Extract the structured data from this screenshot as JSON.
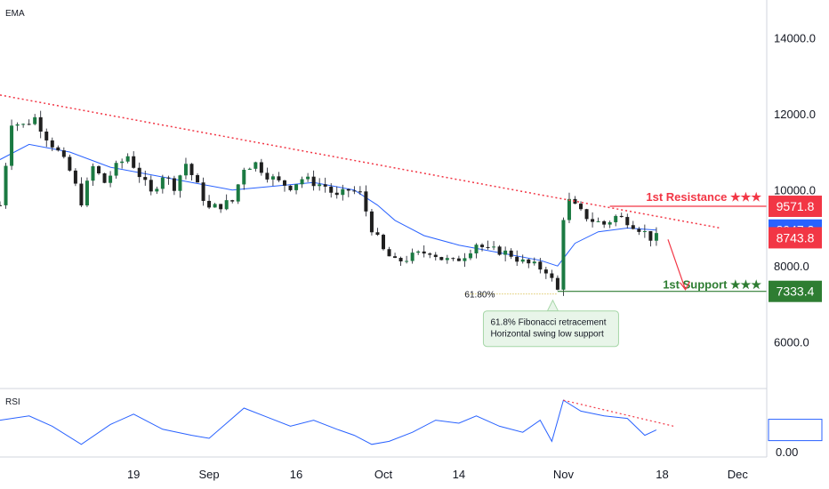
{
  "indicator_labels": {
    "ema": "EMA",
    "rsi": "RSI"
  },
  "chart_data": [
    {
      "type": "candlestick",
      "xlim": [
        "2019-07-27",
        "2019-12-06"
      ],
      "ylim": [
        4800,
        15000
      ],
      "x_ticks": [
        {
          "date": "2019-08-19",
          "label": "19"
        },
        {
          "date": "2019-09-01",
          "label": "Sep"
        },
        {
          "date": "2019-09-16",
          "label": "16"
        },
        {
          "date": "2019-10-01",
          "label": "Oct"
        },
        {
          "date": "2019-10-14",
          "label": "14"
        },
        {
          "date": "2019-11-01",
          "label": "Nov"
        },
        {
          "date": "2019-11-18",
          "label": "18"
        },
        {
          "date": "2019-12-01",
          "label": "Dec"
        }
      ],
      "y_ticks": [
        6000,
        8000,
        10000,
        12000,
        14000
      ],
      "y_tick_labels": [
        "6000.0",
        "8000.0",
        "10000.0",
        "12000.0",
        "14000.0"
      ],
      "grid": false,
      "price_close_path": [
        [
          "2019-07-27",
          9600
        ],
        [
          "2019-07-29",
          11800
        ],
        [
          "2019-07-31",
          11700
        ],
        [
          "2019-08-02",
          11900
        ],
        [
          "2019-08-04",
          11400
        ],
        [
          "2019-08-06",
          11000
        ],
        [
          "2019-08-08",
          10500
        ],
        [
          "2019-08-10",
          9700
        ],
        [
          "2019-08-12",
          10600
        ],
        [
          "2019-08-14",
          10200
        ],
        [
          "2019-08-16",
          10600
        ],
        [
          "2019-08-18",
          10900
        ],
        [
          "2019-08-20",
          10400
        ],
        [
          "2019-08-22",
          9900
        ],
        [
          "2019-08-24",
          10400
        ],
        [
          "2019-08-26",
          10100
        ],
        [
          "2019-08-28",
          10700
        ],
        [
          "2019-08-30",
          10100
        ],
        [
          "2019-09-01",
          9500
        ],
        [
          "2019-09-03",
          9600
        ],
        [
          "2019-09-05",
          9700
        ],
        [
          "2019-09-07",
          10600
        ],
        [
          "2019-09-09",
          10700
        ],
        [
          "2019-09-11",
          10400
        ],
        [
          "2019-09-13",
          10200
        ],
        [
          "2019-09-15",
          10100
        ],
        [
          "2019-09-17",
          10300
        ],
        [
          "2019-09-19",
          10200
        ],
        [
          "2019-09-21",
          10100
        ],
        [
          "2019-09-23",
          9800
        ],
        [
          "2019-09-25",
          10000
        ],
        [
          "2019-09-27",
          9900
        ],
        [
          "2019-09-29",
          9000
        ],
        [
          "2019-10-01",
          8400
        ],
        [
          "2019-10-03",
          8100
        ],
        [
          "2019-10-05",
          8200
        ],
        [
          "2019-10-07",
          8300
        ],
        [
          "2019-10-09",
          8400
        ],
        [
          "2019-10-11",
          8200
        ],
        [
          "2019-10-13",
          8100
        ],
        [
          "2019-10-15",
          8300
        ],
        [
          "2019-10-17",
          8600
        ],
        [
          "2019-10-19",
          8400
        ],
        [
          "2019-10-21",
          8400
        ],
        [
          "2019-10-23",
          8300
        ],
        [
          "2019-10-25",
          8100
        ],
        [
          "2019-10-27",
          8000
        ],
        [
          "2019-10-29",
          7900
        ],
        [
          "2019-10-31",
          7350
        ],
        [
          "2019-11-01",
          9300
        ],
        [
          "2019-11-02",
          9700
        ],
        [
          "2019-11-04",
          9400
        ],
        [
          "2019-11-06",
          9200
        ],
        [
          "2019-11-08",
          9100
        ],
        [
          "2019-11-10",
          9300
        ],
        [
          "2019-11-12",
          9200
        ],
        [
          "2019-11-14",
          9000
        ],
        [
          "2019-11-16",
          8750
        ],
        [
          "2019-11-17",
          8743.8
        ]
      ],
      "ema_path": [
        [
          "2019-07-27",
          10800
        ],
        [
          "2019-08-01",
          11200
        ],
        [
          "2019-08-08",
          11000
        ],
        [
          "2019-08-15",
          10600
        ],
        [
          "2019-08-22",
          10400
        ],
        [
          "2019-08-29",
          10200
        ],
        [
          "2019-09-05",
          10000
        ],
        [
          "2019-09-12",
          10100
        ],
        [
          "2019-09-19",
          10200
        ],
        [
          "2019-09-26",
          10000
        ],
        [
          "2019-09-30",
          9600
        ],
        [
          "2019-10-03",
          9200
        ],
        [
          "2019-10-08",
          8800
        ],
        [
          "2019-10-14",
          8550
        ],
        [
          "2019-10-21",
          8350
        ],
        [
          "2019-10-28",
          8150
        ],
        [
          "2019-10-31",
          8000
        ],
        [
          "2019-11-03",
          8600
        ],
        [
          "2019-11-07",
          8900
        ],
        [
          "2019-11-12",
          9000
        ],
        [
          "2019-11-17",
          8947.3
        ]
      ],
      "trendline": {
        "from": [
          "2019-07-27",
          12500
        ],
        "to": [
          "2019-11-28",
          9000
        ],
        "color": "#f23645"
      },
      "resistance": {
        "label": "1st Resistance ★★★",
        "value": "9571.8",
        "price": 9571.8,
        "from": "2019-11-09",
        "color": "#f23645"
      },
      "support": {
        "label": "1st Support ★★★",
        "value": "7333.4",
        "price": 7333.4,
        "from": "2019-10-31",
        "color": "#2e7d32"
      },
      "current_price": {
        "value": "8743.8",
        "price": 8743.8,
        "color": "#f23645"
      },
      "ema_value": {
        "value": "8947.3",
        "price": 8947.3,
        "color": "#2962ff"
      },
      "fib_label": "61.80%",
      "annotation": [
        "61.8% Fibonacci retracement",
        "Horizontal swing low support"
      ],
      "projection_arrow": {
        "from": [
          "2019-11-19",
          8700
        ],
        "to": [
          "2019-11-22",
          7380
        ]
      }
    },
    {
      "type": "line",
      "title": "RSI",
      "ylim": [
        0,
        100
      ],
      "y_ticks": [
        0
      ],
      "y_tick_labels": [
        "0.00"
      ],
      "current_value": "38.83",
      "series": [
        {
          "color": "#2962ff",
          "values": [
            [
              "2019-07-27",
              55
            ],
            [
              "2019-08-01",
              62
            ],
            [
              "2019-08-05",
              45
            ],
            [
              "2019-08-10",
              15
            ],
            [
              "2019-08-15",
              48
            ],
            [
              "2019-08-19",
              65
            ],
            [
              "2019-08-24",
              40
            ],
            [
              "2019-08-29",
              30
            ],
            [
              "2019-09-01",
              25
            ],
            [
              "2019-09-04",
              50
            ],
            [
              "2019-09-07",
              75
            ],
            [
              "2019-09-11",
              60
            ],
            [
              "2019-09-15",
              45
            ],
            [
              "2019-09-19",
              55
            ],
            [
              "2019-09-23",
              40
            ],
            [
              "2019-09-26",
              30
            ],
            [
              "2019-09-29",
              15
            ],
            [
              "2019-10-02",
              20
            ],
            [
              "2019-10-06",
              35
            ],
            [
              "2019-10-10",
              55
            ],
            [
              "2019-10-14",
              50
            ],
            [
              "2019-10-17",
              62
            ],
            [
              "2019-10-21",
              45
            ],
            [
              "2019-10-25",
              35
            ],
            [
              "2019-10-28",
              55
            ],
            [
              "2019-10-30",
              20
            ],
            [
              "2019-11-01",
              88
            ],
            [
              "2019-11-04",
              70
            ],
            [
              "2019-11-08",
              62
            ],
            [
              "2019-11-12",
              58
            ],
            [
              "2019-11-15",
              30
            ],
            [
              "2019-11-17",
              38.83
            ]
          ]
        }
      ],
      "trendline": {
        "from": [
          "2019-11-01",
          88
        ],
        "to": [
          "2019-11-20",
          45
        ],
        "color": "#f23645"
      }
    }
  ]
}
